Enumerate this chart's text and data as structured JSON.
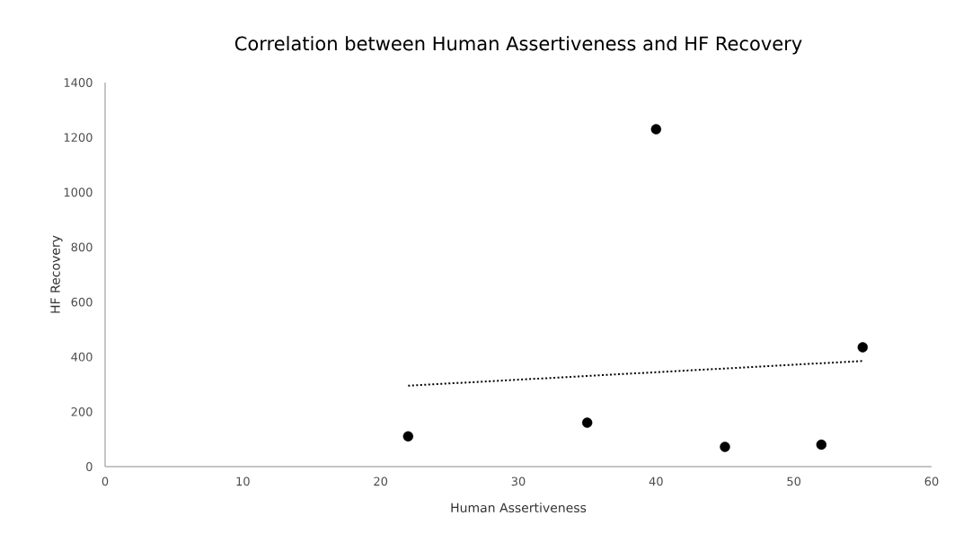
{
  "chart_data": {
    "type": "scatter",
    "title": "Correlation between Human Assertiveness and HF Recovery",
    "xlabel": "Human Assertiveness",
    "ylabel": "HF Recovery",
    "series": [
      {
        "color": "#000000",
        "marker": "circle",
        "x": [
          22,
          35,
          40,
          45,
          52,
          55
        ],
        "values": [
          110,
          160,
          1230,
          72,
          80,
          435
        ]
      },
      {
        "type": "line",
        "color": "#000000",
        "line_style": "dotted",
        "marker": "none",
        "x": [
          22,
          55
        ],
        "values": [
          295,
          385
        ]
      }
    ],
    "xlim": [
      0,
      60
    ],
    "xticks": [
      0,
      10,
      20,
      30,
      40,
      50,
      60
    ],
    "ylim": [
      0,
      1400
    ],
    "yticks": [
      0,
      200,
      400,
      600,
      800,
      1000,
      1200,
      1400
    ],
    "grid": false
  }
}
